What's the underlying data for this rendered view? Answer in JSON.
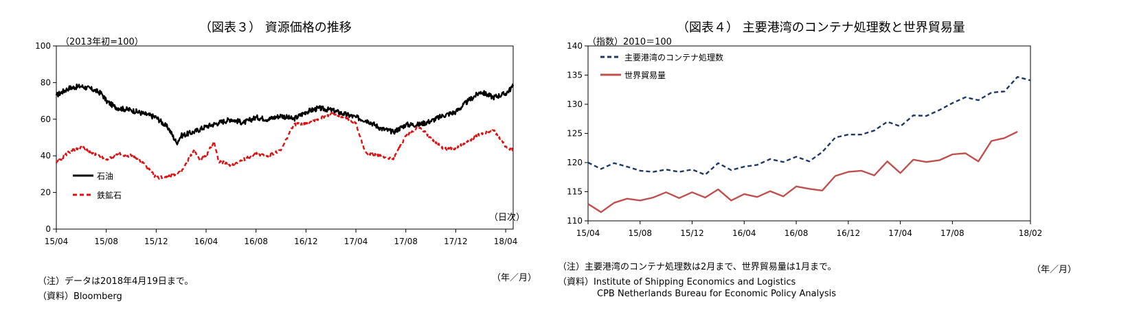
{
  "charts": [
    {
      "title": "（図表３） 資源価格の推移",
      "unit_label": "（2013年初=100）",
      "day_label": "（日次）",
      "period_label": "（年／月）",
      "notes": [
        "（注）データは2018年4月19日まで。",
        "（資料）Bloomberg"
      ]
    },
    {
      "title": "（図表４） 主要港湾のコンテナ処理数と世界貿易量",
      "unit_label": "（指数）2010＝100",
      "period_label": "（年／月）",
      "notes": [
        "（注）主要港湾のコンテナ処理数は2月まで、世界貿易量は1月まで。",
        "（資料）Institute of  Shipping Economics and Logistics",
        "CPB Netherlands Bureau for Economic Policy Analysis"
      ]
    }
  ],
  "chart_data": [
    {
      "type": "line",
      "title": "（図表３） 資源価格の推移",
      "ylabel": "（2013年初=100）",
      "ylim": [
        0,
        100
      ],
      "yticks": [
        0,
        20,
        40,
        60,
        80,
        100
      ],
      "xticks": [
        "15/04",
        "15/08",
        "15/12",
        "16/04",
        "16/08",
        "16/12",
        "17/04",
        "17/08",
        "17/12",
        "18/04"
      ],
      "x_range": [
        "2015-04",
        "2018-04-19"
      ],
      "legend_position": "left-lower",
      "grid": false,
      "series": [
        {
          "name": "石油",
          "color": "#000000",
          "style": "solid",
          "x": [
            "2015-04",
            "2015-05",
            "2015-06",
            "2015-07",
            "2015-07-20",
            "2015-08",
            "2015-08-20",
            "2015-09",
            "2015-10",
            "2015-11",
            "2015-12",
            "2016-01",
            "2016-01-20",
            "2016-02",
            "2016-03",
            "2016-04",
            "2016-05",
            "2016-06",
            "2016-07",
            "2016-08",
            "2016-09",
            "2016-10",
            "2016-11",
            "2016-12",
            "2017-01",
            "2017-02",
            "2017-03",
            "2017-04",
            "2017-05",
            "2017-06",
            "2017-07",
            "2017-08",
            "2017-09",
            "2017-10",
            "2017-11",
            "2017-12",
            "2018-01",
            "2018-02",
            "2018-03",
            "2018-04",
            "2018-04-19"
          ],
          "values": [
            73,
            77,
            78,
            76,
            74,
            70,
            67,
            66,
            65,
            63,
            61,
            55,
            47,
            51,
            53,
            56,
            58,
            60,
            58,
            61,
            60,
            62,
            60,
            64,
            66,
            65,
            63,
            61,
            59,
            55,
            53,
            57,
            57,
            59,
            62,
            64,
            70,
            75,
            72,
            74,
            78
          ]
        },
        {
          "name": "鉄鉱石",
          "color": "#dd1111",
          "style": "dashed",
          "x": [
            "2015-04",
            "2015-05",
            "2015-06",
            "2015-07",
            "2015-08",
            "2015-09",
            "2015-10",
            "2015-11",
            "2015-12",
            "2016-01",
            "2016-02",
            "2016-03",
            "2016-03-15",
            "2016-04",
            "2016-04-20",
            "2016-05",
            "2016-06",
            "2016-07",
            "2016-08",
            "2016-09",
            "2016-10",
            "2016-11",
            "2016-12",
            "2017-01",
            "2017-02",
            "2017-03",
            "2017-04",
            "2017-04-20",
            "2017-05",
            "2017-06",
            "2017-07",
            "2017-08",
            "2017-09",
            "2017-10",
            "2017-11",
            "2017-12",
            "2018-01",
            "2018-02",
            "2018-03",
            "2018-04",
            "2018-04-19"
          ],
          "values": [
            36,
            42,
            45,
            41,
            38,
            41,
            40,
            36,
            28,
            29,
            31,
            43,
            38,
            40,
            48,
            37,
            35,
            38,
            41,
            40,
            43,
            57,
            58,
            60,
            63,
            61,
            58,
            44,
            41,
            40,
            38,
            51,
            56,
            50,
            44,
            44,
            48,
            52,
            54,
            45,
            43
          ]
        }
      ]
    },
    {
      "type": "line",
      "title": "（図表４） 主要港湾のコンテナ処理数と世界貿易量",
      "ylabel": "（指数）2010＝100",
      "ylim": [
        110,
        140
      ],
      "yticks": [
        110,
        115,
        120,
        125,
        130,
        135,
        140
      ],
      "xticks": [
        "15/04",
        "15/08",
        "15/12",
        "16/04",
        "16/08",
        "16/12",
        "17/04",
        "17/08",
        "18/02"
      ],
      "legend_position": "top-left",
      "grid": false,
      "series": [
        {
          "name": "主要港湾のコンテナ処理数",
          "color": "#1f3864",
          "style": "dashed",
          "x": [
            "15/04",
            "15/05",
            "15/06",
            "15/07",
            "15/08",
            "15/09",
            "15/10",
            "15/11",
            "15/12",
            "16/01",
            "16/02",
            "16/03",
            "16/04",
            "16/05",
            "16/06",
            "16/07",
            "16/08",
            "16/09",
            "16/10",
            "16/11",
            "16/12",
            "17/01",
            "17/02",
            "17/03",
            "17/04",
            "17/05",
            "17/06",
            "17/07",
            "17/08",
            "17/09",
            "17/10",
            "17/11",
            "17/12",
            "18/01",
            "18/02"
          ],
          "values": [
            120,
            118.9,
            119.9,
            119.3,
            118.6,
            118.4,
            118.8,
            118.4,
            118.8,
            117.9,
            119.9,
            118.7,
            119.3,
            119.6,
            120.6,
            120.1,
            121,
            120.2,
            121.8,
            124.3,
            124.8,
            124.8,
            125.5,
            127,
            126.2,
            128.1,
            128,
            129,
            130.2,
            131.2,
            130.7,
            132,
            132.2,
            134.7,
            134.1
          ]
        },
        {
          "name": "世界貿易量",
          "color": "#c0504d",
          "style": "solid",
          "x": [
            "15/04",
            "15/05",
            "15/06",
            "15/07",
            "15/08",
            "15/09",
            "15/10",
            "15/11",
            "15/12",
            "16/01",
            "16/02",
            "16/03",
            "16/04",
            "16/05",
            "16/06",
            "16/07",
            "16/08",
            "16/09",
            "16/10",
            "16/11",
            "16/12",
            "17/01",
            "17/02",
            "17/03",
            "17/04",
            "17/05",
            "17/06",
            "17/07",
            "17/08",
            "17/09",
            "17/10",
            "17/11",
            "17/12",
            "18/01"
          ],
          "values": [
            112.9,
            111.5,
            113.1,
            113.8,
            113.5,
            114,
            114.9,
            113.9,
            114.9,
            114,
            115.4,
            113.5,
            114.6,
            114.1,
            115.1,
            114.2,
            115.9,
            115.5,
            115.2,
            117.7,
            118.4,
            118.6,
            117.8,
            120.2,
            118.2,
            120.5,
            120.1,
            120.4,
            121.4,
            121.6,
            120.2,
            123.7,
            124.2,
            125.3
          ]
        }
      ]
    }
  ]
}
